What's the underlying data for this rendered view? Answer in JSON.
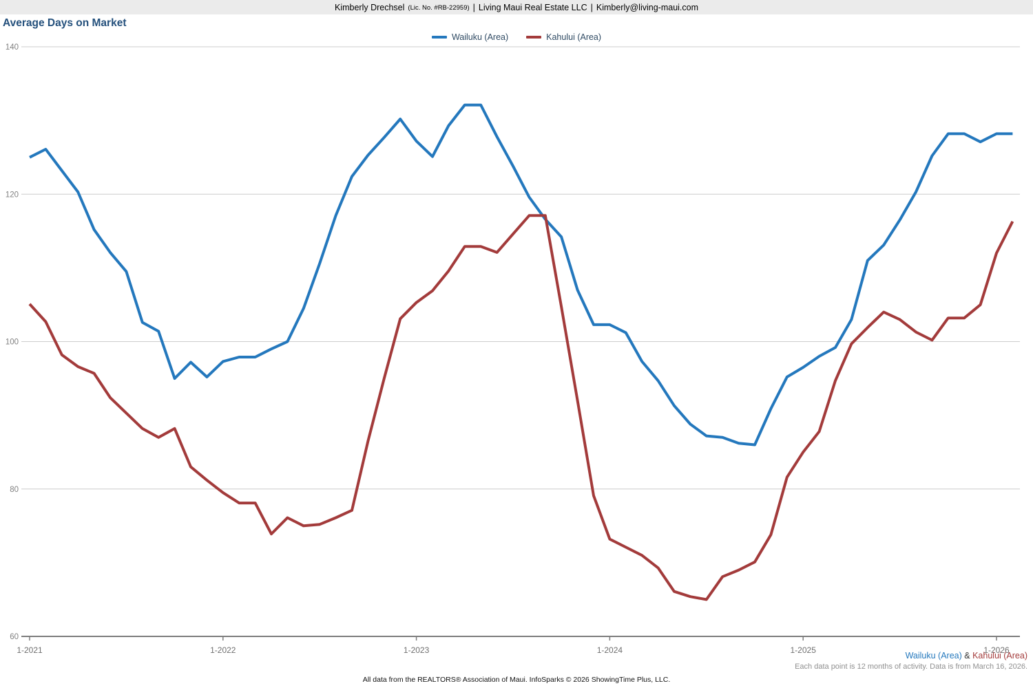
{
  "header": {
    "agent": "Kimberly Drechsel",
    "license": "(Lic. No. #RB-22959)",
    "separator": "|",
    "company": "Living Maui Real Estate LLC",
    "email": "Kimberly@living-maui.com"
  },
  "title": "Average Days on Market",
  "legend": [
    {
      "label": "Wailuku (Area)",
      "color": "#2478bd"
    },
    {
      "label": "Kahului (Area)",
      "color": "#a33b3b"
    }
  ],
  "footer": {
    "series_note": {
      "wailuku": "Wailuku (Area)",
      "amp": " & ",
      "kahului": "Kahului (Area)"
    },
    "data_note": "Each data point is 12 months of activity. Data is from March 16, 2026.",
    "attribution": "All data from the REALTORS® Association of Maui. InfoSparks © 2026 ShowingTime Plus, LLC."
  },
  "colors": {
    "wailuku": "#2478bd",
    "kahului": "#a33b3b",
    "grid": "#cccccc",
    "axis": "#7d7d7d",
    "tick_label": "#6f6f6f",
    "y_label": "#808080",
    "title": "#24507c",
    "note_gray": "#8f8f8f",
    "legend_text": "#2f4a63"
  },
  "chart_data": {
    "type": "line",
    "title": "Average Days on Market",
    "ylabel": "",
    "xlabel": "",
    "ylim": [
      60,
      140
    ],
    "y_ticks": [
      140,
      120,
      100,
      80,
      60
    ],
    "grid": "horizontal",
    "legend_position": "top-center",
    "x_unit": "month",
    "x_start": "1-2021",
    "x_end": "2-2026",
    "x_tick_labels": [
      "1-2021",
      "1-2022",
      "1-2023",
      "1-2024",
      "1-2025",
      "1-2026"
    ],
    "months_per_tick": 12,
    "series": [
      {
        "name": "Wailuku (Area)",
        "color": "#2478bd",
        "values": [
          125.0,
          126.1,
          123.2,
          120.3,
          115.2,
          112.1,
          109.5,
          102.6,
          101.4,
          95.0,
          97.2,
          95.2,
          97.3,
          97.9,
          97.9,
          99.0,
          100.0,
          104.5,
          110.6,
          117.1,
          122.4,
          125.3,
          127.7,
          130.2,
          127.2,
          125.1,
          129.3,
          132.1,
          132.1,
          127.8,
          123.8,
          119.6,
          116.6,
          114.2,
          107.0,
          102.3,
          102.3,
          101.2,
          97.3,
          94.7,
          91.3,
          88.8,
          87.2,
          87.0,
          86.2,
          86.0,
          90.9,
          95.2,
          96.5,
          98.0,
          99.2,
          103.0,
          111.0,
          113.1,
          116.5,
          120.3,
          125.2,
          128.2,
          128.2,
          127.1,
          128.2,
          128.2
        ]
      },
      {
        "name": "Kahului (Area)",
        "color": "#a33b3b",
        "values": [
          105.1,
          102.7,
          98.2,
          96.6,
          95.7,
          92.4,
          90.3,
          88.2,
          87.0,
          88.2,
          83.0,
          81.2,
          79.5,
          78.1,
          78.1,
          73.9,
          76.1,
          75.0,
          75.2,
          76.1,
          77.1,
          86.5,
          95.0,
          103.1,
          105.3,
          106.9,
          109.6,
          112.9,
          112.9,
          112.1,
          114.6,
          117.1,
          117.1,
          104.7,
          92.0,
          79.1,
          73.2,
          72.1,
          71.0,
          69.3,
          66.1,
          65.4,
          65.0,
          68.1,
          69.0,
          70.1,
          73.8,
          81.6,
          85.0,
          87.8,
          94.7,
          99.7,
          101.9,
          104.0,
          103.0,
          101.3,
          100.2,
          103.2,
          103.2,
          105.0,
          112.0,
          116.3
        ]
      }
    ]
  }
}
